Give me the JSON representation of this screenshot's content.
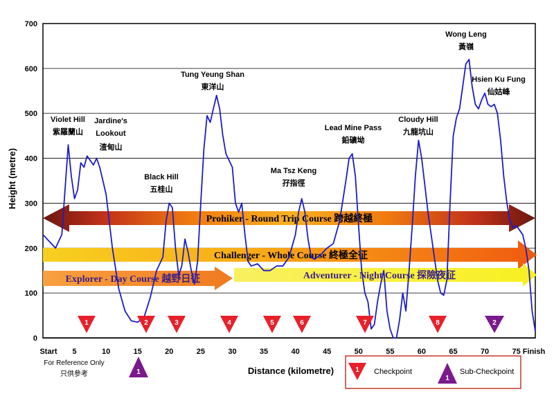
{
  "chart_data": {
    "type": "line",
    "ylabel": "Height (metre)",
    "xlabel": "Distance (kilometre)",
    "ylim": [
      0,
      700
    ],
    "xlim": [
      0,
      78
    ],
    "yticks": [
      "0",
      "100",
      "200",
      "300",
      "400",
      "500",
      "600",
      "700"
    ],
    "xticks": [
      {
        "v": 0,
        "label": "Start"
      },
      {
        "v": 5,
        "label": "5"
      },
      {
        "v": 10,
        "label": "10"
      },
      {
        "v": 15,
        "label": "15"
      },
      {
        "v": 20,
        "label": "20"
      },
      {
        "v": 25,
        "label": "25"
      },
      {
        "v": 30,
        "label": "30"
      },
      {
        "v": 35,
        "label": "35"
      },
      {
        "v": 40,
        "label": "40"
      },
      {
        "v": 45,
        "label": "45"
      },
      {
        "v": 50,
        "label": "50"
      },
      {
        "v": 55,
        "label": "55"
      },
      {
        "v": 60,
        "label": "60"
      },
      {
        "v": 65,
        "label": "65"
      },
      {
        "v": 70,
        "label": "70"
      },
      {
        "v": 75,
        "label": "75"
      },
      {
        "v": 78,
        "label": "Finish"
      }
    ],
    "grid": true,
    "line_color": "#1c1cc8",
    "profile": [
      [
        0,
        230
      ],
      [
        1,
        215
      ],
      [
        2,
        200
      ],
      [
        3,
        230
      ],
      [
        3.5,
        330
      ],
      [
        4,
        430
      ],
      [
        4.5,
        360
      ],
      [
        5,
        310
      ],
      [
        5.5,
        330
      ],
      [
        6,
        390
      ],
      [
        6.5,
        380
      ],
      [
        7,
        405
      ],
      [
        7.5,
        395
      ],
      [
        8,
        385
      ],
      [
        8.5,
        400
      ],
      [
        9,
        380
      ],
      [
        10,
        320
      ],
      [
        11,
        200
      ],
      [
        12,
        110
      ],
      [
        13,
        60
      ],
      [
        14,
        38
      ],
      [
        15,
        35
      ],
      [
        16,
        45
      ],
      [
        17,
        90
      ],
      [
        18,
        150
      ],
      [
        19,
        180
      ],
      [
        19.5,
        260
      ],
      [
        20,
        300
      ],
      [
        20.5,
        290
      ],
      [
        21,
        200
      ],
      [
        21.5,
        140
      ],
      [
        22,
        160
      ],
      [
        22.5,
        220
      ],
      [
        23,
        190
      ],
      [
        23.5,
        150
      ],
      [
        24,
        120
      ],
      [
        24.5,
        170
      ],
      [
        25,
        300
      ],
      [
        25.5,
        420
      ],
      [
        26,
        495
      ],
      [
        26.5,
        480
      ],
      [
        27,
        510
      ],
      [
        27.5,
        540
      ],
      [
        28,
        510
      ],
      [
        28.5,
        450
      ],
      [
        29,
        410
      ],
      [
        30,
        380
      ],
      [
        30.5,
        300
      ],
      [
        31,
        280
      ],
      [
        31.5,
        300
      ],
      [
        32,
        230
      ],
      [
        32.5,
        170
      ],
      [
        33,
        160
      ],
      [
        34,
        165
      ],
      [
        35,
        150
      ],
      [
        36,
        150
      ],
      [
        37,
        160
      ],
      [
        38,
        160
      ],
      [
        39,
        180
      ],
      [
        40,
        230
      ],
      [
        40.5,
        280
      ],
      [
        41,
        310
      ],
      [
        41.5,
        280
      ],
      [
        42,
        220
      ],
      [
        42.5,
        180
      ],
      [
        43,
        175
      ],
      [
        44,
        185
      ],
      [
        45,
        200
      ],
      [
        46,
        210
      ],
      [
        47,
        260
      ],
      [
        48,
        350
      ],
      [
        48.5,
        400
      ],
      [
        49,
        410
      ],
      [
        49.5,
        360
      ],
      [
        50,
        250
      ],
      [
        50.5,
        150
      ],
      [
        51,
        100
      ],
      [
        51.5,
        80
      ],
      [
        52,
        20
      ],
      [
        52.5,
        30
      ],
      [
        53,
        80
      ],
      [
        53.5,
        120
      ],
      [
        54,
        150
      ],
      [
        54.5,
        60
      ],
      [
        55,
        20
      ],
      [
        55.5,
        0
      ],
      [
        56,
        0
      ],
      [
        56.5,
        40
      ],
      [
        57,
        100
      ],
      [
        57.5,
        60
      ],
      [
        58,
        150
      ],
      [
        58.5,
        250
      ],
      [
        59,
        360
      ],
      [
        59.5,
        440
      ],
      [
        60,
        400
      ],
      [
        60.5,
        340
      ],
      [
        61,
        280
      ],
      [
        61.5,
        230
      ],
      [
        62,
        180
      ],
      [
        62.5,
        130
      ],
      [
        63,
        100
      ],
      [
        63.5,
        95
      ],
      [
        64,
        130
      ],
      [
        64.5,
        300
      ],
      [
        65,
        450
      ],
      [
        65.5,
        490
      ],
      [
        66,
        510
      ],
      [
        66.5,
        560
      ],
      [
        67,
        610
      ],
      [
        67.5,
        620
      ],
      [
        68,
        560
      ],
      [
        68.5,
        520
      ],
      [
        69,
        510
      ],
      [
        69.5,
        530
      ],
      [
        70,
        545
      ],
      [
        70.5,
        520
      ],
      [
        71,
        515
      ],
      [
        71.5,
        520
      ],
      [
        72,
        500
      ],
      [
        72.5,
        440
      ],
      [
        73,
        360
      ],
      [
        73.5,
        300
      ],
      [
        74,
        260
      ],
      [
        74.5,
        245
      ],
      [
        75,
        250
      ],
      [
        76,
        230
      ],
      [
        76.5,
        200
      ],
      [
        77,
        150
      ],
      [
        77.5,
        60
      ],
      [
        78,
        15
      ]
    ]
  },
  "peaks": [
    {
      "en": "Violet Hill",
      "zh": "紫羅蘭山"
    },
    {
      "en": "Jardine's",
      "en2": "Lookout",
      "zh": "渣甸山"
    },
    {
      "en": "Black Hill",
      "zh": "五桂山"
    },
    {
      "en": "Tung Yeung Shan",
      "zh": "東洋山"
    },
    {
      "en": "Ma Tsz Keng",
      "zh": "孖指徑"
    },
    {
      "en": "Lead Mine Pass",
      "zh": "鉛礦坳"
    },
    {
      "en": "Cloudy Hill",
      "zh": "九龍坑山"
    },
    {
      "en": "Wong Leng",
      "zh": "黃嶺"
    },
    {
      "en": "Hsien Ku Fung",
      "zh": "仙姑峰"
    }
  ],
  "courses": {
    "prohiker": "Prohiker - Round Trip Course  跨越終極",
    "challenger": "Challenger - Whole Course  終極全征",
    "explorer": "Explorer - Day Course 越野日征",
    "adventurer": "Adventurer - Night Course 探險夜征"
  },
  "checkpoints": [
    "1",
    "2",
    "3",
    "4",
    "5",
    "6",
    "7",
    "8"
  ],
  "sub_checkpoints": [
    "1",
    "2"
  ],
  "reference_note": {
    "en": "For Reference Only",
    "zh": "只供參考"
  },
  "legend": {
    "checkpoint_label": "Checkpoint",
    "checkpoint_num": "1",
    "sub_label": "Sub-Checkpoint",
    "sub_num": "1"
  },
  "colors": {
    "grid": "#000000",
    "line": "#1c1cc8",
    "checkpoint": "#e8202a",
    "sub_checkpoint": "#7a1a8c",
    "legend_border": "#c0392b"
  }
}
